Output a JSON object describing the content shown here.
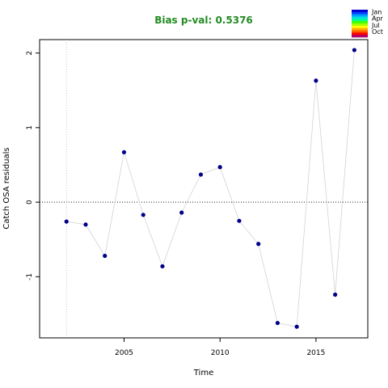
{
  "chart_data": {
    "type": "scatter",
    "title": "Bias p-val: 0.5376",
    "title_color": "#228B22",
    "xlabel": "Time",
    "ylabel": "Catch OSA residuals",
    "xlim": [
      2000.6,
      2017.7
    ],
    "ylim": [
      -1.82,
      2.18
    ],
    "x_ticks": [
      2005,
      2010,
      2015
    ],
    "y_ticks": [
      -1,
      0,
      1,
      2
    ],
    "vline_x": 2002,
    "hline_y": 0,
    "grid": false,
    "point_color": "#00008B",
    "line_color": "#d3d3d3",
    "x": [
      2002,
      2003,
      2004,
      2005,
      2006,
      2007,
      2008,
      2009,
      2010,
      2011,
      2012,
      2013,
      2014,
      2015,
      2016,
      2017
    ],
    "y": [
      -0.26,
      -0.3,
      -0.72,
      0.67,
      -0.17,
      -0.86,
      -0.14,
      0.37,
      0.47,
      -0.25,
      -0.56,
      -1.62,
      -1.67,
      1.63,
      -1.24,
      2.04
    ],
    "legend": {
      "placement": "top-right",
      "entries": [
        "Jan",
        "Apr",
        "Jul",
        "Oct"
      ],
      "colors": [
        "#0000cd",
        "#0044ff",
        "#00a0ff",
        "#00e0e0",
        "#00ff90",
        "#40ff00",
        "#a0ff00",
        "#ffff00",
        "#ffb000",
        "#ff6000",
        "#ff0000",
        "#b0006a"
      ]
    }
  }
}
